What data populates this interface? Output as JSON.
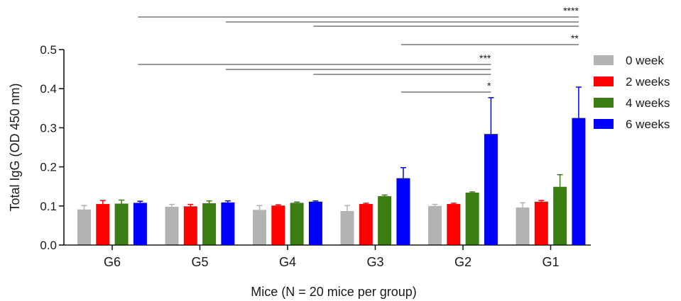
{
  "chart_data": {
    "type": "bar",
    "xlabel": "Mice (N = 20 mice per group)",
    "ylabel": "Total IgG (OD 450 nm)",
    "ylim": [
      0,
      0.5
    ],
    "yticks": [
      "0.0",
      "0.1",
      "0.2",
      "0.3",
      "0.4",
      "0.5"
    ],
    "categories": [
      "G6",
      "G5",
      "G4",
      "G3",
      "G2",
      "G1"
    ],
    "legend_position": "right",
    "series": [
      {
        "name": "0 week",
        "color": "#b3b3b3",
        "values": [
          0.091,
          0.098,
          0.09,
          0.087,
          0.1,
          0.096
        ],
        "errors": [
          0.01,
          0.006,
          0.011,
          0.014,
          0.004,
          0.012
        ]
      },
      {
        "name": "2 weeks",
        "color": "#ff0000",
        "values": [
          0.105,
          0.099,
          0.101,
          0.105,
          0.105,
          0.111
        ],
        "errors": [
          0.009,
          0.005,
          0.002,
          0.002,
          0.002,
          0.003
        ]
      },
      {
        "name": "4 weeks",
        "color": "#3a7d12",
        "values": [
          0.106,
          0.107,
          0.108,
          0.125,
          0.134,
          0.149
        ],
        "errors": [
          0.009,
          0.006,
          0.002,
          0.003,
          0.002,
          0.031
        ]
      },
      {
        "name": "6 weeks",
        "color": "#0000ff",
        "values": [
          0.108,
          0.109,
          0.111,
          0.171,
          0.284,
          0.325
        ],
        "errors": [
          0.004,
          0.004,
          0.002,
          0.027,
          0.093,
          0.079
        ]
      }
    ],
    "significance": [
      {
        "from": "G6",
        "to": "G1",
        "label": "****"
      },
      {
        "from": "G5",
        "to": "G1",
        "label": ""
      },
      {
        "from": "G4",
        "to": "G1",
        "label": ""
      },
      {
        "from": "G3",
        "to": "G1",
        "label": "**"
      },
      {
        "from": "G6",
        "to": "G2",
        "label": "***"
      },
      {
        "from": "G5",
        "to": "G2",
        "label": ""
      },
      {
        "from": "G4",
        "to": "G2",
        "label": ""
      },
      {
        "from": "G3",
        "to": "G2",
        "label": "*"
      }
    ]
  }
}
